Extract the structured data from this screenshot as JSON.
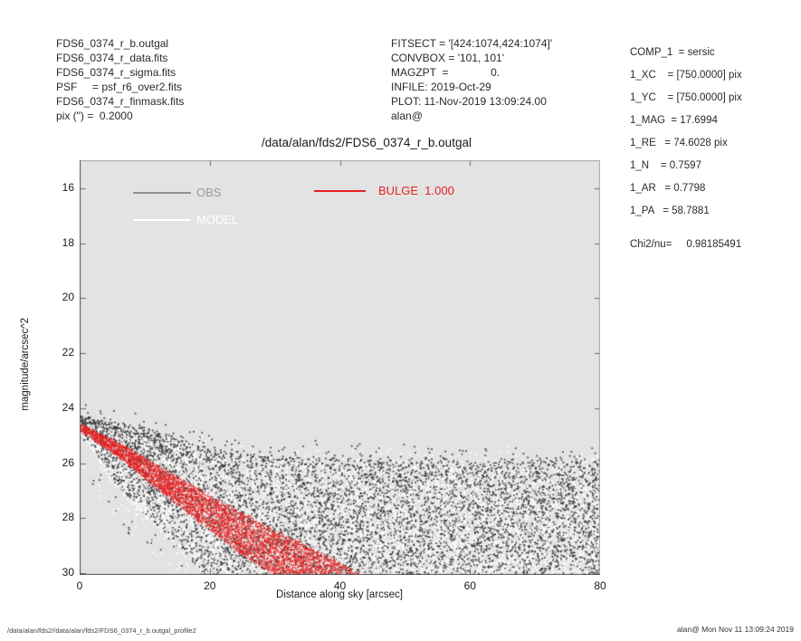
{
  "header": {
    "left_lines": [
      "FDS6_0374_r_b.outgal",
      "FDS6_0374_r_data.fits",
      "FDS6_0374_r_sigma.fits",
      "PSF     = psf_r6_over2.fits",
      "FDS6_0374_r_finmask.fits",
      "pix (\") =  0.2000"
    ],
    "middle_lines": [
      "FITSECT = '[424:1074,424:1074]'",
      "CONVBOX = '101, 101'",
      "MAGZPT  =              0.",
      "INFILE: 2019-Oct-29",
      "PLOT: 11-Nov-2019 13:09:24.00",
      "alan@"
    ],
    "right_lines": [
      "COMP_1  = sersic",
      "1_XC    = [750.0000] pix",
      "1_YC    = [750.0000] pix",
      "1_MAG  = 17.6994",
      "1_RE   = 74.6028 pix",
      "1_N    = 0.7597",
      "1_AR   = 0.7798",
      "1_PA   = 58.7881"
    ],
    "chi2": "Chi2/nu=     0.98185491"
  },
  "footer": {
    "left": "/data/alan/fds2//data/alan/fds2/FDS6_0374_r_b.outgal_profile2",
    "right": "alan@  Mon Nov 11 13:09:24 2019"
  },
  "chart_data": {
    "type": "scatter",
    "title": "/data/alan/fds2/FDS6_0374_r_b.outgal",
    "xlabel": "Distance along sky [arcsec]",
    "ylabel": "magnitude/arcsec^2",
    "xlim": [
      0,
      80
    ],
    "ylim": [
      15.0,
      30.1
    ],
    "y_inverted": true,
    "x_ticks": [
      0,
      20,
      40,
      60,
      80
    ],
    "y_ticks": [
      16,
      18,
      20,
      22,
      24,
      26,
      28,
      30
    ],
    "plot_background": "#e3e3e3",
    "legend": [
      {
        "label": "OBS",
        "color": "#9a9a9a",
        "line_color": "#8f8f8f"
      },
      {
        "label": "MODEL",
        "color": "#ffffff",
        "line_color": "#ffffff"
      },
      {
        "label": "BULGE  1.000",
        "color": "#e62222",
        "line_color": "#e62222"
      }
    ],
    "series": {
      "obs": {
        "name": "OBS",
        "marker_color": "#3c3c3c",
        "n_points": 7500,
        "envelope_top": [
          [
            0,
            24.4
          ],
          [
            5,
            24.6
          ],
          [
            10,
            24.85
          ],
          [
            15,
            25.15
          ],
          [
            20,
            25.5
          ],
          [
            25,
            25.7
          ],
          [
            30,
            25.8
          ],
          [
            40,
            25.82
          ],
          [
            60,
            25.9
          ],
          [
            80,
            25.95
          ]
        ],
        "envelope_bottom": [
          [
            0,
            24.75
          ],
          [
            3,
            25.8
          ],
          [
            5,
            26.6
          ],
          [
            10,
            27.9
          ],
          [
            15,
            28.9
          ],
          [
            20,
            30.3
          ],
          [
            80,
            30.35
          ]
        ]
      },
      "model": {
        "name": "MODEL",
        "marker_color": "#ffffff",
        "n_points": 8000,
        "envelope_top": [
          [
            0,
            24.5
          ],
          [
            5,
            24.72
          ],
          [
            10,
            24.97
          ],
          [
            15,
            25.27
          ],
          [
            20,
            25.62
          ],
          [
            25,
            25.8
          ],
          [
            30,
            25.9
          ],
          [
            40,
            25.95
          ],
          [
            60,
            26.0
          ],
          [
            80,
            26.05
          ]
        ],
        "envelope_bottom": [
          [
            0,
            24.8
          ],
          [
            3,
            25.9
          ],
          [
            5,
            26.7
          ],
          [
            10,
            28.0
          ],
          [
            15,
            29.0
          ],
          [
            20,
            30.3
          ],
          [
            80,
            30.35
          ]
        ]
      },
      "bulge": {
        "name": "BULGE",
        "weight": "1.000",
        "marker_color": "#e62222",
        "n_points": 9000,
        "band_upper": [
          [
            0,
            24.55
          ],
          [
            5,
            25.15
          ],
          [
            10,
            25.8
          ],
          [
            15,
            26.5
          ],
          [
            20,
            27.15
          ],
          [
            25,
            27.8
          ],
          [
            30,
            28.45
          ],
          [
            35,
            29.0
          ],
          [
            40,
            29.6
          ],
          [
            44,
            30.15
          ],
          [
            50,
            30.9
          ]
        ],
        "band_lower": [
          [
            0,
            24.82
          ],
          [
            5,
            25.6
          ],
          [
            10,
            26.55
          ],
          [
            15,
            27.5
          ],
          [
            20,
            28.45
          ],
          [
            25,
            29.35
          ],
          [
            30,
            30.1
          ],
          [
            34,
            30.7
          ]
        ]
      }
    }
  }
}
